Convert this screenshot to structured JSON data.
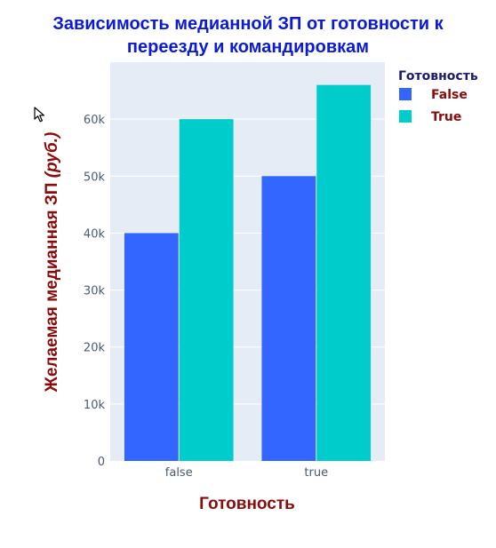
{
  "chart_data": {
    "type": "bar",
    "title": "Зависимость медианной ЗП от готовности к переезду и командировкам",
    "title_lines": [
      "Зависимость медианной ЗП от готовности к",
      "переезду и командировкам"
    ],
    "xlabel": "Готовность",
    "ylabel_main": "Желаемая медианная ЗП ",
    "ylabel_italic": "(руб.)",
    "categories": [
      "false",
      "true"
    ],
    "series": [
      {
        "name": "False",
        "color": "#3366ff",
        "values": [
          40000,
          50000
        ]
      },
      {
        "name": "True",
        "color": "#00cccc",
        "values": [
          60000,
          66000
        ]
      }
    ],
    "ylim": [
      0,
      70000
    ],
    "yticks": [
      0,
      10000,
      20000,
      30000,
      40000,
      50000,
      60000
    ],
    "ytick_labels": [
      "0",
      "10k",
      "20k",
      "30k",
      "40k",
      "50k",
      "60k"
    ],
    "grid": true,
    "plot_bgcolor": "#e5ecf6",
    "legend": {
      "title": "Готовность",
      "placement": "top-right"
    }
  },
  "cursor_icon": "mouse-pointer-icon"
}
